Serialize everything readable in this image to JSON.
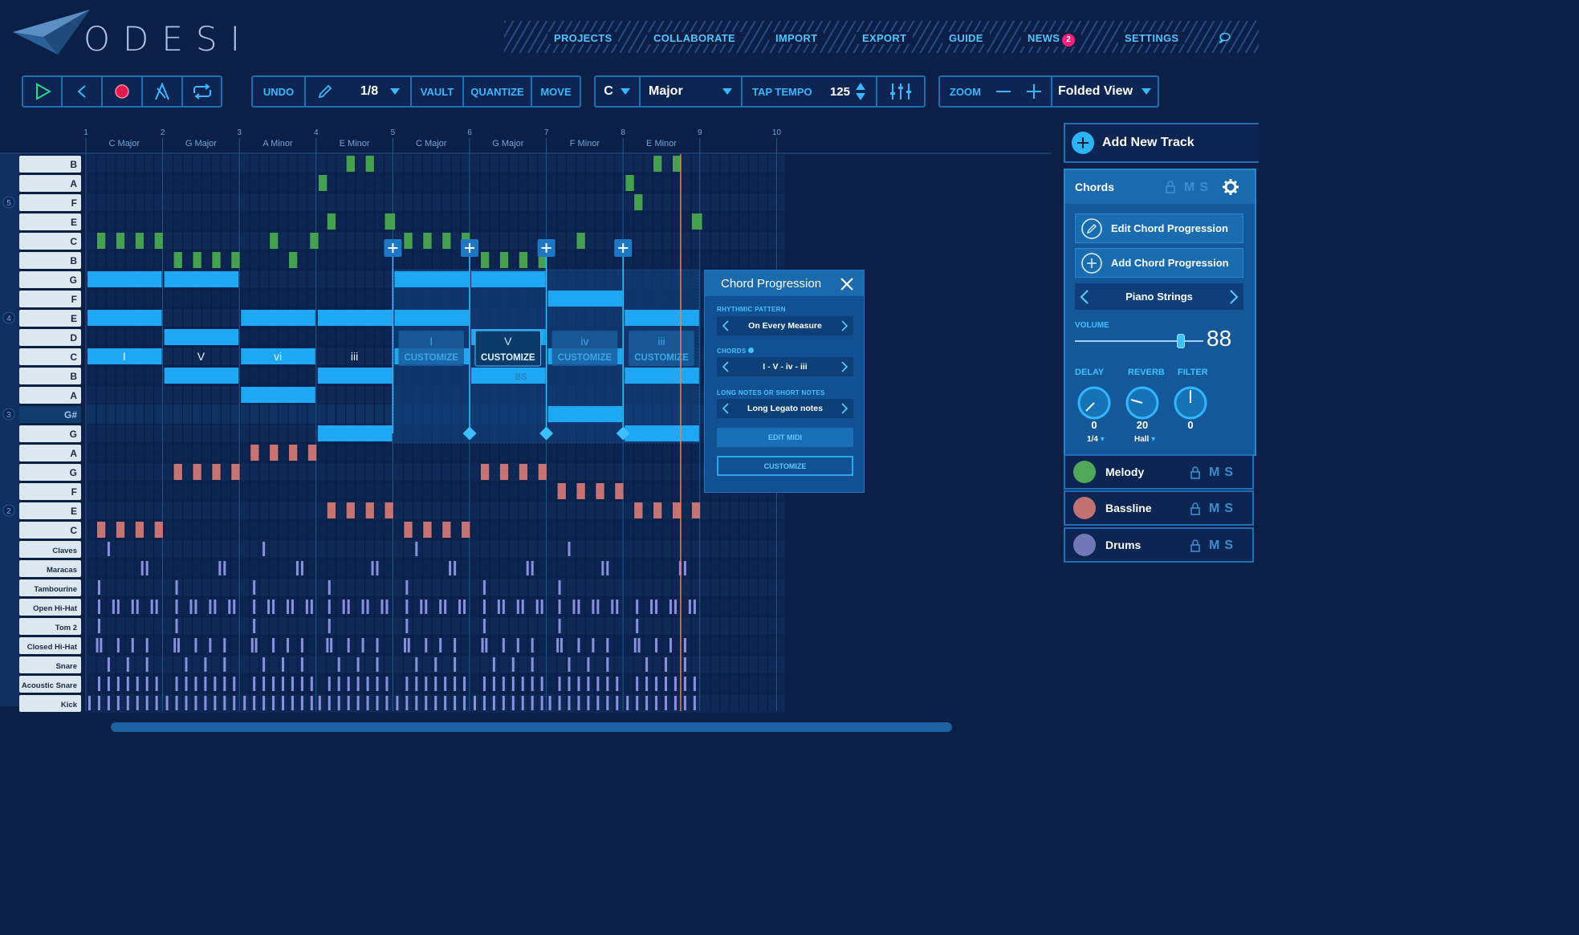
{
  "app": {
    "name": "ODESI"
  },
  "nav": {
    "items": [
      "PROJECTS",
      "COLLABORATE",
      "IMPORT",
      "EXPORT",
      "GUIDE",
      "NEWS",
      "SETTINGS"
    ],
    "news_badge": "2",
    "chat_icon": "chat-bubble-icon"
  },
  "toolbar": {
    "transport_icons": [
      "play-icon",
      "back-icon",
      "record-icon",
      "metronome-icon",
      "loop-icon"
    ],
    "undo": "UNDO",
    "grid_value": "1/8",
    "vault": "VAULT",
    "quantize": "QUANTIZE",
    "move": "MOVE",
    "key": "C",
    "scale": "Major",
    "tap_tempo": "TAP TEMPO",
    "tempo": "125",
    "zoom": "ZOOM",
    "view": "Folded View"
  },
  "timeline": {
    "measures": [
      "1",
      "2",
      "3",
      "4",
      "5",
      "6",
      "7",
      "8",
      "9",
      "10"
    ],
    "chord_labels": [
      "C Major",
      "G Major",
      "A Minor",
      "E Minor",
      "C Major",
      "G Major",
      "F Minor",
      "E Minor"
    ],
    "roman_numerals": [
      "I",
      "V",
      "vi",
      "iii"
    ],
    "customize_blocks": [
      {
        "numeral": "I",
        "label": "CUSTOMIZE"
      },
      {
        "numeral": "V",
        "label": "CUSTOMIZE"
      },
      {
        "numeral": "iv",
        "label": "CUSTOMIZE"
      },
      {
        "numeral": "iii",
        "label": "CUSTOMIZE"
      }
    ],
    "faint_text": "BS"
  },
  "piano_keys": {
    "octave_labels": [
      "5",
      "4",
      "3",
      "2"
    ],
    "melody_keys": [
      "B",
      "A",
      "F",
      "E",
      "C"
    ],
    "chord_keys": [
      "B",
      "G",
      "F",
      "E",
      "D",
      "C",
      "B",
      "A",
      "G#",
      "G"
    ],
    "bass_keys": [
      "A",
      "G",
      "F",
      "E",
      "C"
    ],
    "drum_keys": [
      "Claves",
      "Maracas",
      "Tambourine",
      "Open Hi-Hat",
      "Tom 2",
      "Closed Hi-Hat",
      "Snare",
      "Acoustic Snare",
      "Kick"
    ]
  },
  "popup": {
    "title": "Chord Progression",
    "rhythmic_label": "RHYTHMIC PATTERN",
    "rhythmic_value": "On Every Measure",
    "chords_label": "CHORDS",
    "chords_value": "I - V - iv - iii",
    "notes_label": "LONG NOTES OR SHORT NOTES",
    "notes_value": "Long Legato notes",
    "edit_midi": "EDIT MIDI",
    "customize": "CUSTOMIZE"
  },
  "panel": {
    "add_track": "Add New Track",
    "chords_title": "Chords",
    "edit_progression": "Edit Chord Progression",
    "add_progression": "Add Chord Progression",
    "instrument": "Piano Strings",
    "volume_label": "VOLUME",
    "volume_value": "88",
    "volume_level": 0.88,
    "delay_label": "DELAY",
    "reverb_label": "REVERB",
    "filter_label": "FILTER",
    "delay_value": "0",
    "reverb_value": "20",
    "filter_value": "0",
    "delay_sub": "1/4",
    "reverb_sub": "Hall",
    "lms": "MS",
    "tracks": [
      {
        "name": "Melody",
        "color": "#4fa85a"
      },
      {
        "name": "Bassline",
        "color": "#c07272"
      },
      {
        "name": "Drums",
        "color": "#7277b8"
      }
    ]
  },
  "colors": {
    "accent": "#2cb4f5",
    "melody": "#46a052",
    "chord": "#1ea7f2",
    "bass": "#c57373",
    "drums": "#8a8fe0",
    "playhead": "#ff7a52"
  }
}
